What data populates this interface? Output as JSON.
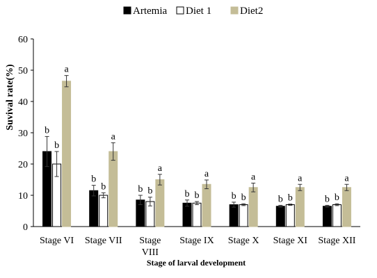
{
  "chart_data": {
    "type": "bar",
    "xlabel": "Stage of larval development",
    "ylabel": "Suvival rate(%)",
    "ylim": [
      0,
      60
    ],
    "yticks": [
      "0",
      "10",
      "20",
      "30",
      "40",
      "50",
      "60"
    ],
    "ytick_values": [
      0,
      10,
      20,
      30,
      40,
      50,
      60
    ],
    "grid": false,
    "legend_position": "top",
    "categories": [
      [
        "Stage VI"
      ],
      [
        "Stage VII"
      ],
      [
        "Stage",
        "VIII"
      ],
      [
        "Stage IX"
      ],
      [
        "Stage X"
      ],
      [
        "Stage XI"
      ],
      [
        "Stage XII"
      ]
    ],
    "series": [
      {
        "name": "Artemia",
        "color": "#000000",
        "stroke": "#000000",
        "values": [
          24,
          11.5,
          8.5,
          7.5,
          7,
          6.5,
          6.5
        ],
        "errors": [
          4.8,
          1.7,
          1.5,
          1.0,
          0.8,
          0.3,
          0.3
        ],
        "letters": [
          "b",
          "b",
          "b",
          "b",
          "b",
          "b",
          "b"
        ]
      },
      {
        "name": "Diet 1",
        "color": "#ffffff",
        "stroke": "#000000",
        "values": [
          20,
          10,
          8,
          7.5,
          7,
          7,
          7
        ],
        "errors": [
          4.0,
          0.8,
          1.4,
          0.5,
          0.3,
          0.2,
          0.3
        ],
        "letters": [
          "b",
          "b",
          "b",
          "b",
          "b",
          "b",
          "b"
        ]
      },
      {
        "name": "Diet2",
        "color": "#c4bd97",
        "stroke": "#c4bd97",
        "values": [
          46.5,
          24,
          15,
          13.5,
          12.5,
          12.5,
          12.5
        ],
        "errors": [
          1.8,
          2.8,
          1.7,
          1.4,
          1.4,
          1.0,
          1.0
        ],
        "letters": [
          "a",
          "a",
          "a",
          "a",
          "a",
          "a",
          "a"
        ]
      }
    ]
  }
}
